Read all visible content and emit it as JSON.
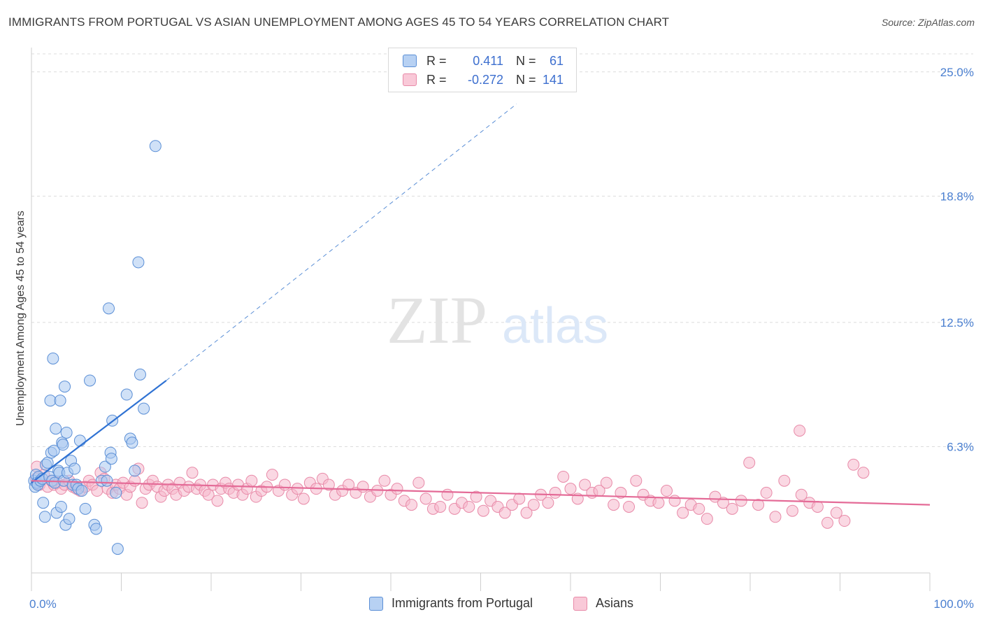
{
  "title": "IMMIGRANTS FROM PORTUGAL VS ASIAN UNEMPLOYMENT AMONG AGES 45 TO 54 YEARS CORRELATION CHART",
  "source": "Source: ZipAtlas.com",
  "watermark": {
    "zip": "ZIP",
    "atlas": "atlas"
  },
  "colors": {
    "blue_fill": "#a9c8f0",
    "blue_stroke": "#5b8fd6",
    "blue_line": "#2f72d3",
    "pink_fill": "#f6b8cc",
    "pink_stroke": "#e88aa8",
    "pink_line": "#e46b97",
    "tick_text": "#4a7fd0",
    "grid": "#dcdcdc"
  },
  "legend": {
    "rows": [
      {
        "r_label": "R =",
        "r_value": "0.411",
        "n_label": "N =",
        "n_value": "61"
      },
      {
        "r_label": "R =",
        "r_value": "-0.272",
        "n_label": "N =",
        "n_value": "141"
      }
    ]
  },
  "bottom_legend": [
    {
      "label": "Immigrants from Portugal"
    },
    {
      "label": "Asians"
    }
  ],
  "chart_data": {
    "type": "scatter",
    "title": "IMMIGRANTS FROM PORTUGAL VS ASIAN UNEMPLOYMENT AMONG AGES 45 TO 54 YEARS CORRELATION CHART",
    "xlabel": "",
    "ylabel": "Unemployment Among Ages 45 to 54 years",
    "xlim": [
      0,
      100
    ],
    "ylim": [
      0,
      25.9
    ],
    "x_tick_labels": [
      {
        "value": 0,
        "label": "0.0%"
      },
      {
        "value": 100,
        "label": "100.0%"
      }
    ],
    "y_tick_labels": [
      {
        "value": 6.3,
        "label": "6.3%"
      },
      {
        "value": 12.5,
        "label": "12.5%"
      },
      {
        "value": 18.8,
        "label": "18.8%"
      },
      {
        "value": 25.0,
        "label": "25.0%"
      }
    ],
    "series": [
      {
        "name": "Immigrants from Portugal",
        "color": "blue",
        "trend": {
          "x0": 0,
          "y0": 4.5,
          "x1": 15,
          "y1": 9.6,
          "dashed_to_x": 54,
          "dashed_to_y": 23.4
        },
        "points": [
          [
            0.3,
            4.6
          ],
          [
            0.4,
            4.3
          ],
          [
            0.5,
            4.9
          ],
          [
            0.6,
            4.5
          ],
          [
            0.7,
            4.4
          ],
          [
            0.8,
            4.8
          ],
          [
            1.0,
            4.6
          ],
          [
            1.2,
            4.7
          ],
          [
            1.3,
            3.5
          ],
          [
            1.5,
            2.8
          ],
          [
            1.6,
            5.4
          ],
          [
            1.8,
            5.5
          ],
          [
            2.0,
            4.8
          ],
          [
            2.1,
            8.6
          ],
          [
            2.2,
            6.0
          ],
          [
            2.3,
            4.6
          ],
          [
            2.4,
            10.7
          ],
          [
            2.5,
            6.1
          ],
          [
            2.6,
            4.5
          ],
          [
            2.7,
            7.2
          ],
          [
            2.8,
            3.0
          ],
          [
            3.0,
            5.1
          ],
          [
            3.1,
            5.0
          ],
          [
            3.2,
            8.6
          ],
          [
            3.3,
            3.3
          ],
          [
            3.4,
            6.5
          ],
          [
            3.5,
            6.4
          ],
          [
            3.6,
            4.6
          ],
          [
            3.7,
            9.3
          ],
          [
            3.8,
            2.4
          ],
          [
            3.9,
            7.0
          ],
          [
            4.0,
            5.0
          ],
          [
            4.2,
            2.7
          ],
          [
            4.4,
            5.6
          ],
          [
            4.6,
            4.4
          ],
          [
            4.8,
            5.2
          ],
          [
            5.0,
            4.4
          ],
          [
            5.2,
            4.2
          ],
          [
            5.4,
            6.6
          ],
          [
            5.6,
            4.1
          ],
          [
            6.0,
            3.2
          ],
          [
            6.5,
            9.6
          ],
          [
            7.0,
            2.4
          ],
          [
            7.2,
            2.2
          ],
          [
            7.8,
            4.6
          ],
          [
            8.2,
            5.3
          ],
          [
            8.4,
            4.6
          ],
          [
            8.6,
            13.2
          ],
          [
            8.8,
            6.0
          ],
          [
            8.9,
            5.7
          ],
          [
            9.0,
            7.6
          ],
          [
            9.4,
            4.0
          ],
          [
            9.6,
            1.2
          ],
          [
            10.6,
            8.9
          ],
          [
            11.0,
            6.7
          ],
          [
            11.2,
            6.5
          ],
          [
            11.5,
            5.1
          ],
          [
            11.9,
            15.5
          ],
          [
            12.1,
            9.9
          ],
          [
            12.5,
            8.2
          ],
          [
            13.8,
            21.3
          ]
        ]
      },
      {
        "name": "Asians",
        "color": "pink",
        "trend": {
          "x0": 0,
          "y0": 4.6,
          "x1": 100,
          "y1": 3.4
        },
        "points": [
          [
            0.5,
            4.7
          ],
          [
            0.6,
            5.3
          ],
          [
            0.9,
            4.4
          ],
          [
            1.4,
            4.9
          ],
          [
            1.8,
            4.3
          ],
          [
            2.2,
            4.6
          ],
          [
            2.5,
            4.4
          ],
          [
            2.9,
            4.5
          ],
          [
            3.3,
            4.2
          ],
          [
            3.7,
            4.4
          ],
          [
            4.2,
            4.6
          ],
          [
            4.6,
            4.3
          ],
          [
            5.0,
            4.2
          ],
          [
            5.4,
            4.1
          ],
          [
            6.0,
            4.3
          ],
          [
            6.4,
            4.6
          ],
          [
            6.8,
            4.4
          ],
          [
            7.3,
            4.1
          ],
          [
            7.7,
            5.0
          ],
          [
            8.1,
            4.7
          ],
          [
            8.5,
            4.2
          ],
          [
            9.0,
            4.0
          ],
          [
            9.4,
            4.4
          ],
          [
            9.8,
            4.2
          ],
          [
            10.2,
            4.5
          ],
          [
            10.6,
            3.9
          ],
          [
            11.0,
            4.3
          ],
          [
            11.5,
            4.6
          ],
          [
            11.9,
            5.2
          ],
          [
            12.3,
            3.5
          ],
          [
            12.7,
            4.2
          ],
          [
            13.1,
            4.4
          ],
          [
            13.5,
            4.6
          ],
          [
            14.0,
            4.3
          ],
          [
            14.4,
            3.8
          ],
          [
            14.8,
            4.1
          ],
          [
            15.2,
            4.4
          ],
          [
            15.7,
            4.2
          ],
          [
            16.1,
            3.9
          ],
          [
            16.5,
            4.5
          ],
          [
            17.0,
            4.1
          ],
          [
            17.5,
            4.3
          ],
          [
            17.9,
            5.0
          ],
          [
            18.4,
            4.2
          ],
          [
            18.8,
            4.4
          ],
          [
            19.3,
            4.1
          ],
          [
            19.7,
            3.9
          ],
          [
            20.2,
            4.4
          ],
          [
            20.7,
            3.6
          ],
          [
            21.1,
            4.2
          ],
          [
            21.6,
            4.5
          ],
          [
            22.0,
            4.2
          ],
          [
            22.5,
            4.0
          ],
          [
            23.0,
            4.4
          ],
          [
            23.5,
            3.9
          ],
          [
            24.0,
            4.2
          ],
          [
            24.5,
            4.6
          ],
          [
            25.0,
            3.8
          ],
          [
            25.6,
            4.1
          ],
          [
            26.2,
            4.3
          ],
          [
            26.8,
            4.9
          ],
          [
            27.5,
            4.1
          ],
          [
            28.2,
            4.4
          ],
          [
            29.0,
            3.9
          ],
          [
            29.6,
            4.2
          ],
          [
            30.3,
            3.7
          ],
          [
            31.0,
            4.5
          ],
          [
            31.7,
            4.2
          ],
          [
            32.4,
            4.7
          ],
          [
            33.1,
            4.4
          ],
          [
            33.8,
            3.9
          ],
          [
            34.6,
            4.1
          ],
          [
            35.3,
            4.4
          ],
          [
            36.1,
            4.0
          ],
          [
            36.9,
            4.3
          ],
          [
            37.7,
            3.8
          ],
          [
            38.5,
            4.1
          ],
          [
            39.3,
            4.6
          ],
          [
            40.0,
            3.9
          ],
          [
            40.7,
            4.2
          ],
          [
            41.5,
            3.6
          ],
          [
            42.3,
            3.4
          ],
          [
            43.1,
            4.5
          ],
          [
            43.9,
            3.7
          ],
          [
            44.7,
            3.2
          ],
          [
            45.5,
            3.3
          ],
          [
            46.3,
            3.9
          ],
          [
            47.1,
            3.2
          ],
          [
            47.9,
            3.5
          ],
          [
            48.7,
            3.3
          ],
          [
            49.5,
            3.8
          ],
          [
            50.3,
            3.1
          ],
          [
            51.1,
            3.6
          ],
          [
            51.9,
            3.3
          ],
          [
            52.7,
            3.0
          ],
          [
            53.5,
            3.4
          ],
          [
            54.3,
            3.7
          ],
          [
            55.1,
            3.0
          ],
          [
            55.9,
            3.4
          ],
          [
            56.7,
            3.9
          ],
          [
            57.5,
            3.5
          ],
          [
            58.3,
            4.0
          ],
          [
            59.2,
            4.8
          ],
          [
            60.0,
            4.2
          ],
          [
            60.8,
            3.7
          ],
          [
            61.6,
            4.4
          ],
          [
            62.4,
            4.0
          ],
          [
            63.2,
            4.1
          ],
          [
            64.0,
            4.5
          ],
          [
            64.8,
            3.4
          ],
          [
            65.6,
            4.0
          ],
          [
            66.5,
            3.3
          ],
          [
            67.3,
            4.6
          ],
          [
            68.1,
            3.9
          ],
          [
            68.9,
            3.6
          ],
          [
            69.8,
            3.5
          ],
          [
            70.7,
            4.1
          ],
          [
            71.6,
            3.6
          ],
          [
            72.5,
            3.0
          ],
          [
            73.4,
            3.4
          ],
          [
            74.3,
            3.2
          ],
          [
            75.2,
            2.7
          ],
          [
            76.1,
            3.8
          ],
          [
            77.0,
            3.5
          ],
          [
            78.0,
            3.2
          ],
          [
            79.0,
            3.6
          ],
          [
            79.9,
            5.5
          ],
          [
            80.9,
            3.4
          ],
          [
            81.8,
            4.0
          ],
          [
            82.8,
            2.8
          ],
          [
            83.8,
            4.6
          ],
          [
            84.7,
            3.1
          ],
          [
            85.7,
            3.9
          ],
          [
            86.6,
            3.5
          ],
          [
            87.5,
            3.3
          ],
          [
            88.6,
            2.5
          ],
          [
            89.6,
            3.0
          ],
          [
            90.5,
            2.6
          ],
          [
            91.5,
            5.4
          ],
          [
            92.6,
            5.0
          ],
          [
            85.5,
            7.1
          ]
        ]
      }
    ]
  }
}
